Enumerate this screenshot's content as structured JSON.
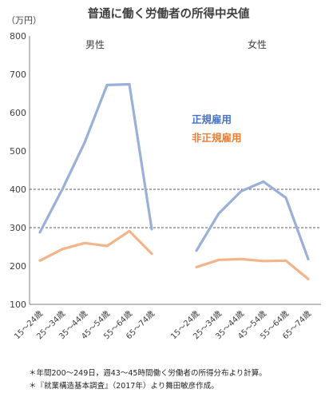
{
  "chart_data": {
    "type": "line",
    "title": "普通に働く労働者の所得中央値",
    "ylabel": "（万円）",
    "ylim": [
      100,
      800
    ],
    "yticks": [
      100,
      200,
      300,
      400,
      500,
      600,
      700,
      800
    ],
    "dashed_gridlines": [
      300,
      400
    ],
    "categories": [
      "15～24歳",
      "25～34歳",
      "35～44歳",
      "45～54歳",
      "55～64歳",
      "65～74歳"
    ],
    "panels": [
      {
        "label": "男性",
        "series": [
          {
            "name": "正規雇用",
            "color": "#9bb0d8",
            "values": [
              288,
              400,
              522,
              672,
              674,
              296
            ]
          },
          {
            "name": "非正規雇用",
            "color": "#f3b48a",
            "values": [
              214,
              244,
              260,
              252,
              291,
              232
            ]
          }
        ]
      },
      {
        "label": "女性",
        "series": [
          {
            "name": "正規雇用",
            "color": "#9bb0d8",
            "values": [
              240,
              337,
              395,
              420,
              378,
              218
            ]
          },
          {
            "name": "非正規雇用",
            "color": "#f3b48a",
            "values": [
              197,
              216,
              218,
              213,
              214,
              166
            ]
          }
        ]
      }
    ],
    "legend": [
      {
        "name": "正規雇用",
        "color": "#4472c4"
      },
      {
        "name": "非正規雇用",
        "color": "#ed7d31"
      }
    ]
  },
  "notes": [
    "＊年間200～249日，週43～45時間働く労働者の所得分布より計算。",
    "＊『就業構造基本調査』（2017年）より舞田敏彦作成。"
  ]
}
